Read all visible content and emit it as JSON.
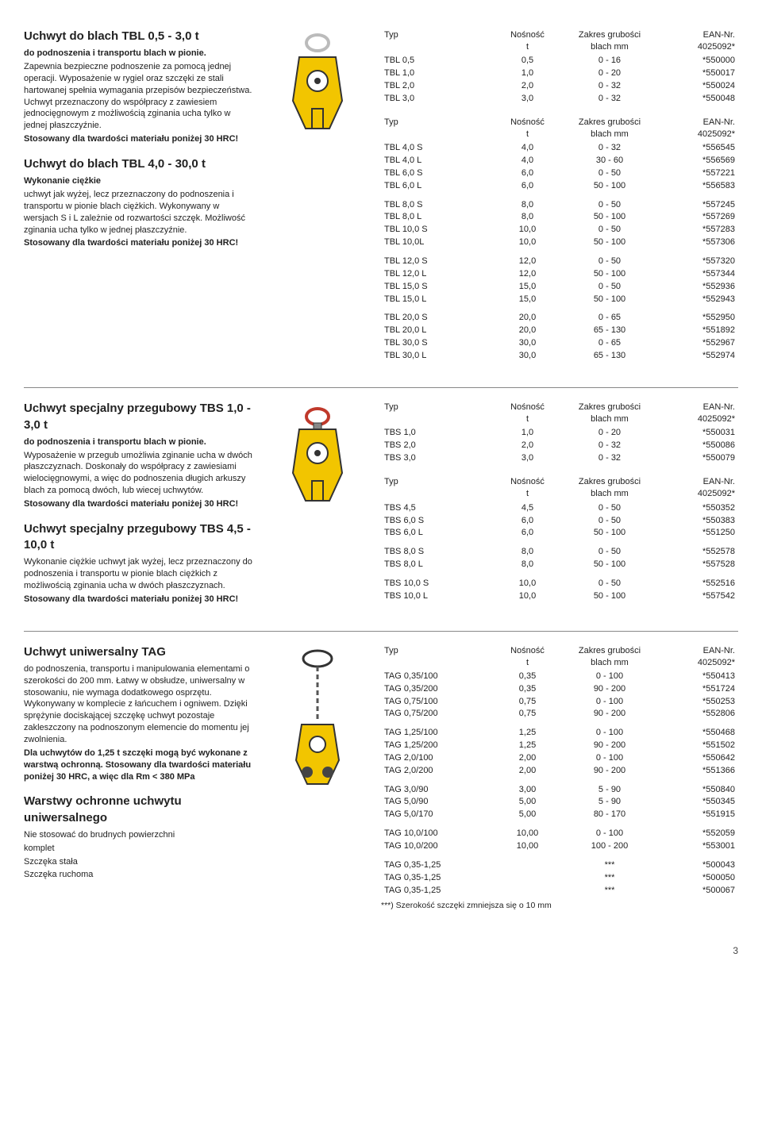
{
  "colors": {
    "text": "#222222",
    "border": "#888888",
    "clamp_body": "#f2c500",
    "clamp_stroke": "#333333",
    "chain": "#555555"
  },
  "headers": {
    "typ": "Typ",
    "nosnosc": "Nośność",
    "nosnosc_unit": "t",
    "zakres": "Zakres grubości",
    "zakres_unit": "blach mm",
    "ean": "EAN-Nr.",
    "ean_code": "4025092*"
  },
  "sections": [
    {
      "id": "tbl",
      "left_blocks": [
        {
          "title": "Uchwyt do blach TBL 0,5 - 3,0 t",
          "sub": "do podnoszenia i transportu blach w pionie.",
          "body": "Zapewnia bezpieczne podnoszenie za pomocą jednej operacji. Wyposażenie w rygiel oraz szczęki ze stali hartowanej spełnia wymagania przepisów bezpieczeństwa. Uchwyt przeznaczony do współpracy z zawiesiem jednocięgnowym z możliwością zginania ucha tylko w jednej płaszczyźnie.",
          "bold_tail": "Stosowany dla twardości materiału poniżej 30 HRC!"
        },
        {
          "title": "Uchwyt do blach TBL 4,0 - 30,0 t",
          "sub": "Wykonanie ciężkie",
          "body": "uchwyt jak wyżej, lecz przeznaczony do podnoszenia i transportu w pionie blach ciężkich. Wykonywany w wersjach S i L zależnie od rozwartości szczęk. Możliwość zginania ucha tylko w jednej płaszczyźnie.",
          "bold_tail": "Stosowany dla twardości materiału poniżej 30 HRC!"
        }
      ],
      "image": "clamp1",
      "tables": [
        {
          "groups": [
            [
              {
                "typ": "TBL 0,5",
                "nos": "0,5",
                "zak": "0 - 16",
                "ean": "*550000"
              },
              {
                "typ": "TBL 1,0",
                "nos": "1,0",
                "zak": "0 - 20",
                "ean": "*550017"
              },
              {
                "typ": "TBL 2,0",
                "nos": "2,0",
                "zak": "0 - 32",
                "ean": "*550024"
              },
              {
                "typ": "TBL 3,0",
                "nos": "3,0",
                "zak": "0 - 32",
                "ean": "*550048"
              }
            ]
          ]
        },
        {
          "groups": [
            [
              {
                "typ": "TBL 4,0 S",
                "nos": "4,0",
                "zak": "0 - 32",
                "ean": "*556545"
              },
              {
                "typ": "TBL 4,0 L",
                "nos": "4,0",
                "zak": "30 - 60",
                "ean": "*556569"
              },
              {
                "typ": "TBL 6,0 S",
                "nos": "6,0",
                "zak": "0 - 50",
                "ean": "*557221"
              },
              {
                "typ": "TBL 6,0 L",
                "nos": "6,0",
                "zak": "50 - 100",
                "ean": "*556583"
              }
            ],
            [
              {
                "typ": "TBL 8,0 S",
                "nos": "8,0",
                "zak": "0 - 50",
                "ean": "*557245"
              },
              {
                "typ": "TBL 8,0 L",
                "nos": "8,0",
                "zak": "50 - 100",
                "ean": "*557269"
              },
              {
                "typ": "TBL 10,0 S",
                "nos": "10,0",
                "zak": "0 - 50",
                "ean": "*557283"
              },
              {
                "typ": "TBL 10,0L",
                "nos": "10,0",
                "zak": "50 - 100",
                "ean": "*557306"
              }
            ],
            [
              {
                "typ": "TBL 12,0 S",
                "nos": "12,0",
                "zak": "0 - 50",
                "ean": "*557320"
              },
              {
                "typ": "TBL 12,0 L",
                "nos": "12,0",
                "zak": "50 - 100",
                "ean": "*557344"
              },
              {
                "typ": "TBL 15,0 S",
                "nos": "15,0",
                "zak": "0 - 50",
                "ean": "*552936"
              },
              {
                "typ": "TBL 15,0 L",
                "nos": "15,0",
                "zak": "50 - 100",
                "ean": "*552943"
              }
            ],
            [
              {
                "typ": "TBL 20,0 S",
                "nos": "20,0",
                "zak": "0 - 65",
                "ean": "*552950"
              },
              {
                "typ": "TBL 20,0 L",
                "nos": "20,0",
                "zak": "65 - 130",
                "ean": "*551892"
              },
              {
                "typ": "TBL 30,0 S",
                "nos": "30,0",
                "zak": "0 - 65",
                "ean": "*552967"
              },
              {
                "typ": "TBL 30,0 L",
                "nos": "30,0",
                "zak": "65 - 130",
                "ean": "*552974"
              }
            ]
          ]
        }
      ]
    },
    {
      "id": "tbs",
      "left_blocks": [
        {
          "title": "Uchwyt specjalny przegubowy TBS 1,0 - 3,0 t",
          "sub": "do podnoszenia i transportu blach w pionie.",
          "body": "Wyposażenie w przegub umożliwia zginanie ucha w dwóch płaszczyznach. Doskonały do współpracy z zawiesiami wielocięgnowymi, a więc do podnoszenia długich arkuszy blach za pomocą dwóch, lub wiecej uchwytów.",
          "bold_tail": "Stosowany dla twardości materiału poniżej 30 HRC!"
        },
        {
          "title": "Uchwyt specjalny przegubowy TBS 4,5 - 10,0 t",
          "body": "Wykonanie ciężkie uchwyt jak wyżej, lecz przeznaczony do podnoszenia i transportu w pionie blach ciężkich z możliwością zginania ucha w dwóch płaszczyznach.",
          "bold_tail": "Stosowany dla twardości materiału poniżej 30 HRC!"
        }
      ],
      "image": "clamp2",
      "tables": [
        {
          "groups": [
            [
              {
                "typ": "TBS 1,0",
                "nos": "1,0",
                "zak": "0 - 20",
                "ean": "*550031"
              },
              {
                "typ": "TBS 2,0",
                "nos": "2,0",
                "zak": "0 - 32",
                "ean": "*550086"
              },
              {
                "typ": "TBS 3,0",
                "nos": "3,0",
                "zak": "0 - 32",
                "ean": "*550079"
              }
            ]
          ]
        },
        {
          "groups": [
            [
              {
                "typ": "TBS 4,5",
                "nos": "4,5",
                "zak": "0 - 50",
                "ean": "*550352"
              },
              {
                "typ": "TBS 6,0 S",
                "nos": "6,0",
                "zak": "0 - 50",
                "ean": "*550383"
              },
              {
                "typ": "TBS 6,0 L",
                "nos": "6,0",
                "zak": "50 - 100",
                "ean": "*551250"
              }
            ],
            [
              {
                "typ": "TBS 8,0 S",
                "nos": "8,0",
                "zak": "0 - 50",
                "ean": "*552578"
              },
              {
                "typ": "TBS 8,0 L",
                "nos": "8,0",
                "zak": "50 - 100",
                "ean": "*557528"
              }
            ],
            [
              {
                "typ": "TBS 10,0 S",
                "nos": "10,0",
                "zak": "0 - 50",
                "ean": "*552516"
              },
              {
                "typ": "TBS 10,0 L",
                "nos": "10,0",
                "zak": "50 - 100",
                "ean": "*557542"
              }
            ]
          ]
        }
      ]
    },
    {
      "id": "tag",
      "left_blocks": [
        {
          "title": "Uchwyt uniwersalny TAG",
          "body": "do podnoszenia, transportu i manipulowania elementami o szerokości do 200 mm. Łatwy w obsłudze, uniwersalny w stosowaniu, nie wymaga dodatkowego osprzętu. Wykonywany w komplecie z łańcuchem i ogniwem. Dzięki sprężynie dociskającej szczękę uchwyt pozostaje zakleszczony na podnoszonym elemencie do momentu jej zwolnienia.",
          "bold_tail": "Dla uchwytów do 1,25 t szczęki mogą być wykonane z warstwą ochronną. Stosowany dla twardości materiału poniżej 30 HRC, a więc dla Rm < 380 MPa"
        },
        {
          "title": "Warstwy ochronne uchwytu uniwersalnego",
          "body": "Nie stosować do brudnych powierzchni",
          "list": [
            "komplet",
            "Szczęka stała",
            "Szczęka ruchoma"
          ]
        }
      ],
      "image": "clamp3",
      "tables": [
        {
          "groups": [
            [
              {
                "typ": "TAG 0,35/100",
                "nos": "0,35",
                "zak": "0 - 100",
                "ean": "*550413"
              },
              {
                "typ": "TAG 0,35/200",
                "nos": "0,35",
                "zak": "90 - 200",
                "ean": "*551724"
              },
              {
                "typ": "TAG 0,75/100",
                "nos": "0,75",
                "zak": "0 - 100",
                "ean": "*550253"
              },
              {
                "typ": "TAG 0,75/200",
                "nos": "0,75",
                "zak": "90 - 200",
                "ean": "*552806"
              }
            ],
            [
              {
                "typ": "TAG 1,25/100",
                "nos": "1,25",
                "zak": "0 - 100",
                "ean": "*550468"
              },
              {
                "typ": "TAG 1,25/200",
                "nos": "1,25",
                "zak": "90 - 200",
                "ean": "*551502"
              },
              {
                "typ": "TAG 2,0/100",
                "nos": "2,00",
                "zak": "0 - 100",
                "ean": "*550642"
              },
              {
                "typ": "TAG 2,0/200",
                "nos": "2,00",
                "zak": "90 - 200",
                "ean": "*551366"
              }
            ],
            [
              {
                "typ": "TAG 3,0/90",
                "nos": "3,00",
                "zak": "5 - 90",
                "ean": "*550840"
              },
              {
                "typ": "TAG 5,0/90",
                "nos": "5,00",
                "zak": "5 - 90",
                "ean": "*550345"
              },
              {
                "typ": "TAG 5,0/170",
                "nos": "5,00",
                "zak": "80 - 170",
                "ean": "*551915"
              }
            ],
            [
              {
                "typ": "TAG 10,0/100",
                "nos": "10,00",
                "zak": "0 - 100",
                "ean": "*552059"
              },
              {
                "typ": "TAG 10,0/200",
                "nos": "10,00",
                "zak": "100 - 200",
                "ean": "*553001"
              }
            ],
            [
              {
                "typ": "TAG 0,35-1,25",
                "nos": "",
                "zak": "***",
                "ean": "*500043"
              },
              {
                "typ": "TAG 0,35-1,25",
                "nos": "",
                "zak": "***",
                "ean": "*500050"
              },
              {
                "typ": "TAG 0,35-1,25",
                "nos": "",
                "zak": "***",
                "ean": "*500067"
              }
            ]
          ],
          "footnote": "***) Szerokość szczęki zmniejsza się o 10 mm"
        }
      ]
    }
  ],
  "page_number": "3"
}
